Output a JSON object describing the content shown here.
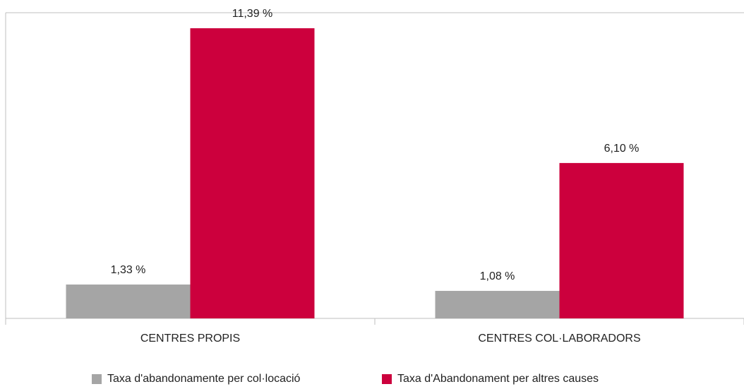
{
  "chart_data": {
    "type": "bar",
    "categories": [
      "CENTRES PROPIS",
      "CENTRES COL·LABORADORS"
    ],
    "series": [
      {
        "name": "Taxa d'abandonamente per col·locació",
        "color": "#a5a5a5",
        "values": [
          1.33,
          1.08
        ],
        "value_labels": [
          "1,33 %",
          "1,08 %"
        ]
      },
      {
        "name": "Taxa d'Abandonament per altres causes",
        "color": "#cc003d",
        "values": [
          11.39,
          6.1
        ],
        "value_labels": [
          "11,39 %",
          "6,10 %"
        ]
      }
    ],
    "ylim": [
      0,
      12
    ],
    "legend": "bottom"
  }
}
